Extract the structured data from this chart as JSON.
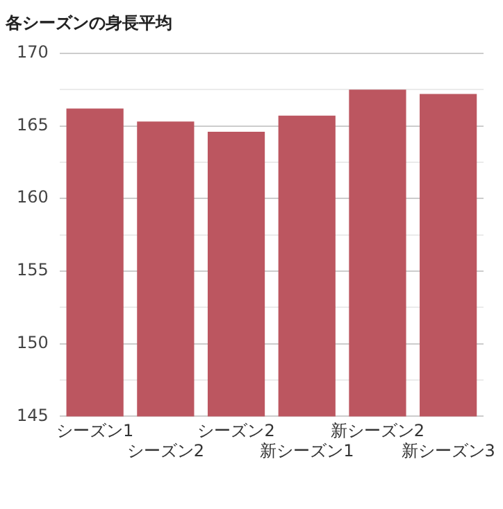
{
  "chart_data": {
    "type": "bar",
    "title": "各シーズンの身長平均",
    "categories": [
      "シーズン1",
      "シーズン2",
      "シーズン2",
      "新シーズン1",
      "新シーズン2",
      "新シーズン3"
    ],
    "values": [
      166.2,
      165.3,
      164.6,
      165.7,
      167.5,
      167.2
    ],
    "color": "#bc5660",
    "ylim": [
      145,
      170
    ],
    "yticks": [
      145,
      {
        "value": 147.5,
        "label": null
      },
      150,
      {
        "value": 152.5,
        "label": null
      },
      155,
      {
        "value": 157.5,
        "label": null
      },
      160,
      {
        "value": 162.5,
        "label": null
      },
      165,
      {
        "value": 167.5,
        "label": null
      },
      170
    ],
    "grid": "y",
    "legend": false
  }
}
